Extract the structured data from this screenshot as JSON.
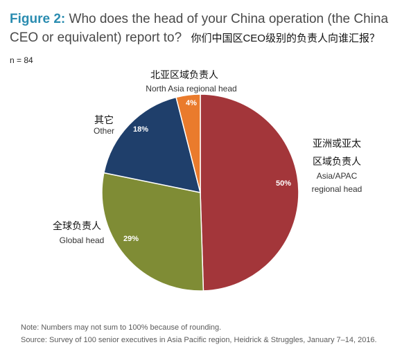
{
  "header": {
    "figure_label": "Figure 2:",
    "question_en": "Who does the head of your China operation (the China CEO or equivalent) report to?",
    "question_zh": "你们中国区CEO级别的负责人向谁汇报？",
    "sample": "n = 84"
  },
  "chart_data": {
    "type": "pie",
    "slices": [
      {
        "label_zh": "亚洲或亚太区域负责人",
        "label_zh_line1": "亚洲或亚太",
        "label_zh_line2": "区域负责人",
        "label_en_line1": "Asia/APAC",
        "label_en_line2": "regional head",
        "value": 50,
        "value_label": "50%",
        "color": "#a3363a"
      },
      {
        "label_zh": "全球负责人",
        "label_en": "Global head",
        "value": 29,
        "value_label": "29%",
        "color": "#7f8c35"
      },
      {
        "label_zh": "其它",
        "label_en": "Other",
        "value": 18,
        "value_label": "18%",
        "color": "#1f3f6b"
      },
      {
        "label_zh": "北亚区域负责人",
        "label_en": "North Asia regional head",
        "value": 4,
        "value_label": "4%",
        "color": "#ea7b2c"
      }
    ]
  },
  "footnotes": {
    "note": "Note: Numbers may not sum to 100% because of rounding.",
    "source": "Source: Survey of 100 senior executives in Asia Pacific region, Heidrick & Struggles, January 7–14, 2016."
  }
}
